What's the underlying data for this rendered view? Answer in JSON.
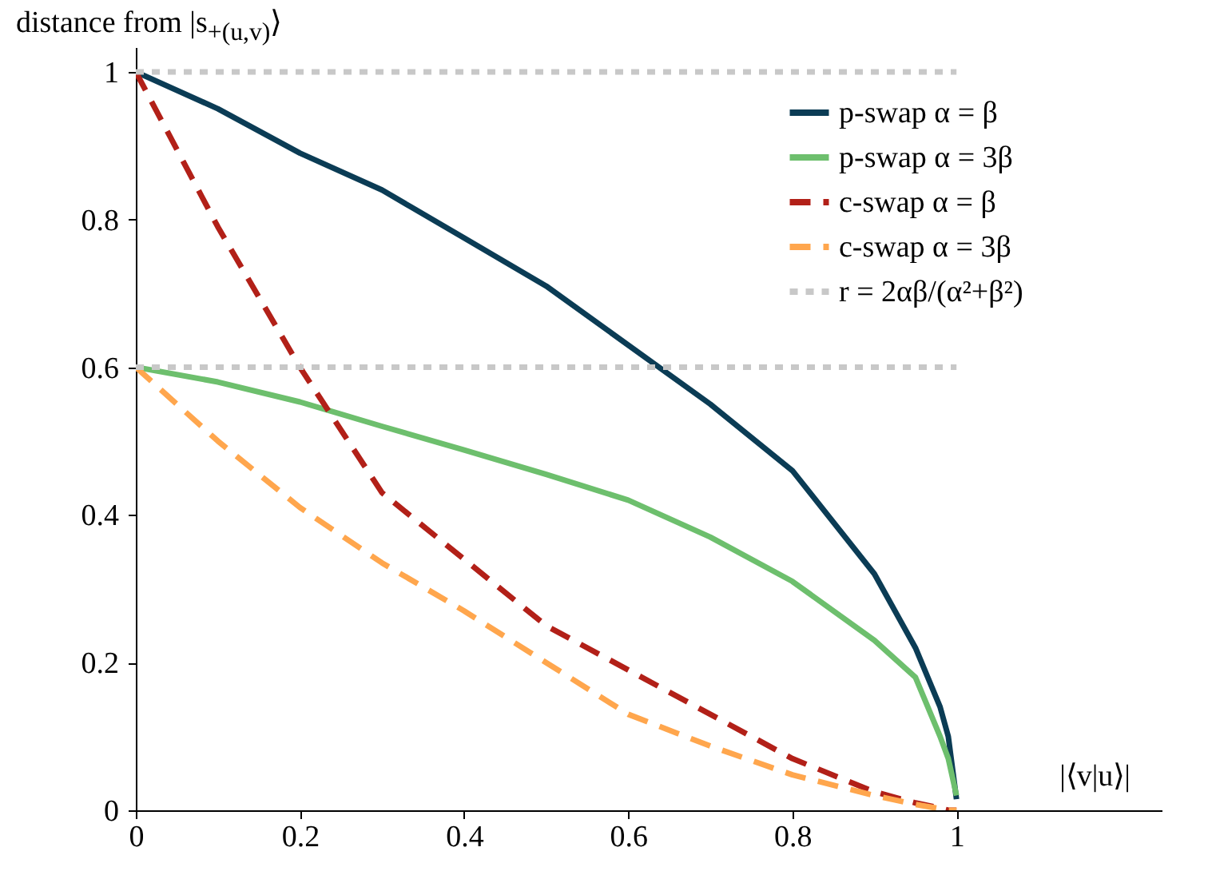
{
  "chart_data": {
    "type": "line",
    "xlabel": "|⟨v|u⟩|",
    "ylabel": "distance from |s$_{+(u,v)}$⟩",
    "xlim": [
      0,
      1.25
    ],
    "ylim": [
      0,
      1.08
    ],
    "xticks": [
      0,
      0.2,
      0.4,
      0.6,
      0.8,
      1
    ],
    "yticks": [
      0,
      0.2,
      0.4,
      0.6,
      0.8,
      1
    ],
    "legend": "top right",
    "x": [
      0,
      0.1,
      0.2,
      0.3,
      0.4,
      0.5,
      0.6,
      0.7,
      0.8,
      0.9,
      0.95,
      0.98,
      0.99,
      1
    ],
    "series": [
      {
        "name": "p-swap α = β",
        "color": "#0b3c55",
        "line_style": "solid",
        "values": [
          1,
          0.95,
          0.89,
          0.84,
          0.775,
          0.71,
          0.63,
          0.55,
          0.46,
          0.32,
          0.22,
          0.14,
          0.1,
          0.015
        ]
      },
      {
        "name": "p-swap α = 3β",
        "color": "#6dbf6d",
        "line_style": "solid",
        "values": [
          0.6,
          0.58,
          0.553,
          0.52,
          0.488,
          0.455,
          0.42,
          0.37,
          0.31,
          0.23,
          0.18,
          0.1,
          0.07,
          0.02
        ]
      },
      {
        "name": "c-swap α = β",
        "color": "#b22018",
        "line_style": "dashed",
        "values": [
          1,
          0.79,
          0.6,
          0.43,
          0.34,
          0.25,
          0.19,
          0.13,
          0.07,
          0.025,
          0.01,
          0.003,
          0,
          0
        ]
      },
      {
        "name": "c-swap α = 3β",
        "color": "#ffa64d",
        "line_style": "dashed",
        "values": [
          0.6,
          0.5,
          0.41,
          0.335,
          0.27,
          0.2,
          0.13,
          0.087,
          0.048,
          0.02,
          0.008,
          0.002,
          0,
          0
        ]
      },
      {
        "name": "r = 2αβ/(α²+β²)",
        "color": "#c8c8c8",
        "line_style": "dotted",
        "values": [
          0.6,
          0.6,
          0.6,
          0.6,
          0.6,
          0.6,
          0.6,
          0.6,
          0.6,
          0.6,
          0.6,
          0.6,
          0.6,
          0.6
        ]
      },
      {
        "color": "#c8c8c8",
        "line_style": "dotted",
        "values": [
          1,
          1,
          1,
          1,
          1,
          1,
          1,
          1,
          1,
          1,
          1,
          1,
          1,
          1
        ]
      }
    ]
  }
}
